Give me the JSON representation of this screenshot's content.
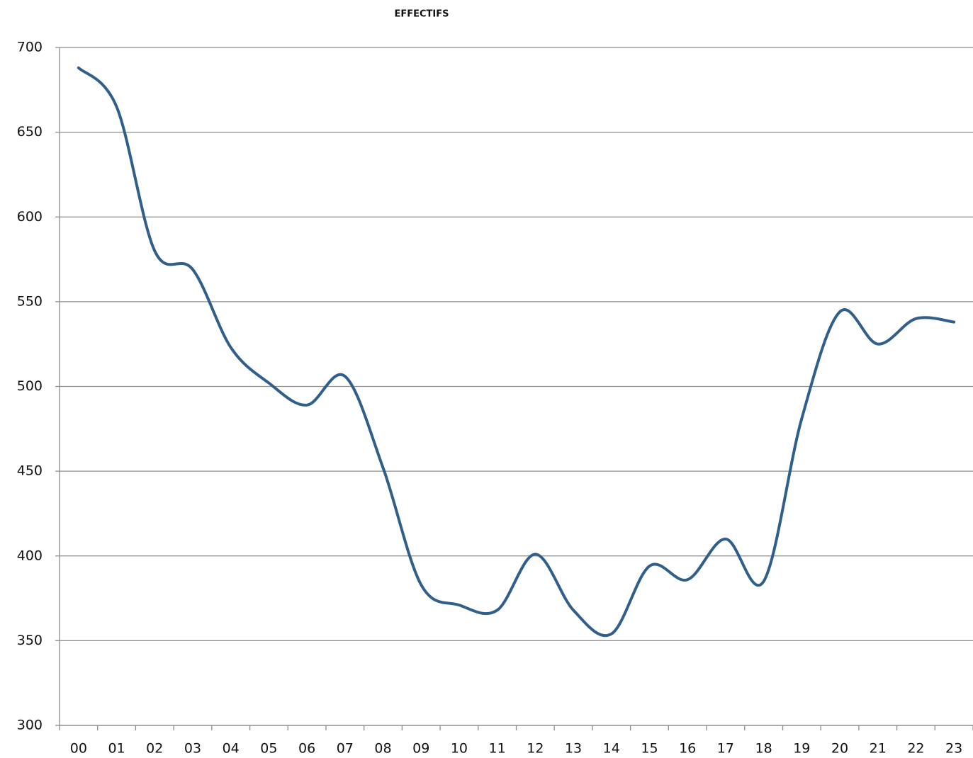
{
  "chart_data": {
    "type": "line",
    "title": "EFFECTIFS",
    "categories": [
      "00",
      "01",
      "02",
      "03",
      "04",
      "05",
      "06",
      "07",
      "08",
      "09",
      "10",
      "11",
      "12",
      "13",
      "14",
      "15",
      "16",
      "17",
      "18",
      "19",
      "20",
      "21",
      "22",
      "23"
    ],
    "series": [
      {
        "name": "EFFECTIFS",
        "color": "#2f5f8a",
        "values": [
          688,
          665,
          580,
          569,
          523,
          502,
          489,
          506,
          452,
          383,
          371,
          368,
          401,
          368,
          354,
          394,
          386,
          410,
          385,
          481,
          544,
          525,
          540,
          538
        ]
      }
    ],
    "ylim": [
      300,
      700
    ],
    "yticks": [
      300,
      350,
      400,
      450,
      500,
      550,
      600,
      650,
      700
    ],
    "grid": true
  }
}
